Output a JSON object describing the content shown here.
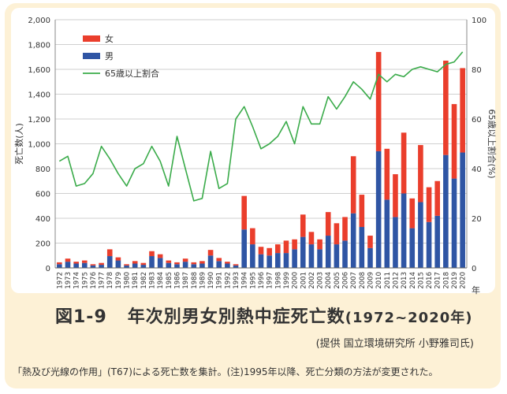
{
  "figure": {
    "title_prefix": "図1-9",
    "title_main": "年次別男女別熱中症死亡数",
    "title_years": "(1972~2020年)",
    "credit": "(提供 国立環境研究所 小野雅司氏)",
    "note": "「熱及び光線の作用」(T67)による死亡数を集計。(注)1995年以降、死亡分類の方法が変更された。"
  },
  "chart_data": {
    "type": "bar",
    "stacked": true,
    "ylabel": "死亡数(人)",
    "y2label": "65歳以上割合(%)",
    "xlabel": "年",
    "ylim": [
      0,
      2000
    ],
    "y2lim": [
      0,
      100
    ],
    "yticks": [
      "0",
      "200",
      "400",
      "600",
      "800",
      "1,000",
      "1,200",
      "1,400",
      "1,600",
      "1,800",
      "2,000"
    ],
    "y2ticks": [
      "0",
      "20",
      "40",
      "60",
      "80",
      "100"
    ],
    "grid": true,
    "legend_position": "top-left",
    "categories": [
      "1972",
      "1973",
      "1974",
      "1975",
      "1976",
      "1977",
      "1978",
      "1979",
      "1980",
      "1981",
      "1982",
      "1983",
      "1984",
      "1985",
      "1986",
      "1987",
      "1988",
      "1989",
      "1990",
      "1991",
      "1992",
      "1993",
      "1994",
      "1995",
      "1996",
      "1997",
      "1998",
      "1999",
      "2000",
      "2001",
      "2002",
      "2003",
      "2004",
      "2005",
      "2006",
      "2007",
      "2008",
      "2009",
      "2010",
      "2011",
      "2012",
      "2013",
      "2014",
      "2015",
      "2016",
      "2017",
      "2018",
      "2019",
      "2020"
    ],
    "series": [
      {
        "name": "男",
        "color": "#2f55a4",
        "values": [
          30,
          50,
          35,
          40,
          20,
          25,
          95,
          60,
          20,
          35,
          25,
          95,
          80,
          40,
          30,
          50,
          30,
          35,
          100,
          55,
          35,
          20,
          310,
          190,
          110,
          100,
          120,
          120,
          150,
          250,
          190,
          150,
          260,
          190,
          220,
          440,
          330,
          160,
          940,
          550,
          410,
          600,
          320,
          530,
          370,
          420,
          910,
          720,
          930
        ]
      },
      {
        "name": "女",
        "color": "#ea3e2c",
        "values": [
          15,
          25,
          15,
          20,
          10,
          15,
          55,
          25,
          10,
          20,
          15,
          40,
          30,
          20,
          15,
          25,
          15,
          20,
          45,
          25,
          15,
          10,
          270,
          130,
          60,
          60,
          70,
          100,
          80,
          180,
          100,
          80,
          190,
          170,
          190,
          460,
          260,
          100,
          800,
          410,
          345,
          490,
          240,
          460,
          280,
          280,
          760,
          600,
          680
        ]
      },
      {
        "name": "65歳以上割合",
        "type": "line",
        "axis": "right",
        "color": "#3aab4a",
        "values": [
          43,
          45,
          33,
          34,
          38,
          49,
          44,
          38,
          33,
          40,
          42,
          49,
          43,
          33,
          53,
          40,
          27,
          28,
          47,
          32,
          34,
          60,
          65,
          57,
          48,
          50,
          53,
          59,
          50,
          65,
          58,
          58,
          69,
          64,
          69,
          75,
          72,
          68,
          78,
          75,
          78,
          77,
          80,
          81,
          80,
          79,
          82,
          83,
          87
        ]
      }
    ]
  }
}
